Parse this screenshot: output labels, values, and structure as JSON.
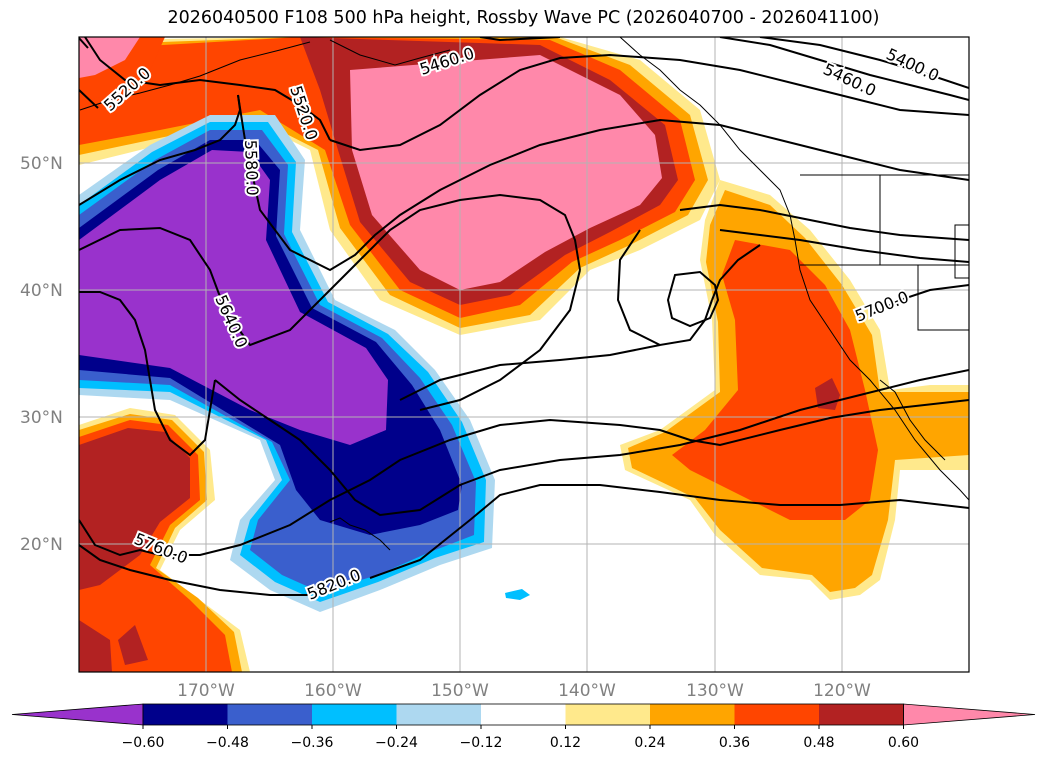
{
  "title": "2026040500 F108 500 hPa height, Rossby Wave PC (2026040700 - 2026041100)",
  "longitude_labels": [
    "170°W",
    "160°W",
    "150°W",
    "140°W",
    "130°W",
    "120°W"
  ],
  "latitude_labels": [
    "50°N",
    "40°N",
    "30°N",
    "20°N"
  ],
  "contour_labels": [
    "5520.0",
    "5520.0",
    "5460.0",
    "5400.0",
    "5460.0",
    "5580.0",
    "5640.0",
    "5700.0",
    "5760.0",
    "5820.0"
  ],
  "colorbar": {
    "ticks": [
      "−0.60",
      "−0.48",
      "−0.36",
      "−0.24",
      "−0.12",
      "0.12",
      "0.24",
      "0.36",
      "0.48",
      "0.60"
    ],
    "colors": [
      "#9932cc",
      "#00008b",
      "#3a5fcd",
      "#00bfff",
      "#add8f0",
      "#ffffff",
      "#ffe98c",
      "#ffa500",
      "#ff4500",
      "#b22222",
      "#ff88aa"
    ]
  }
}
